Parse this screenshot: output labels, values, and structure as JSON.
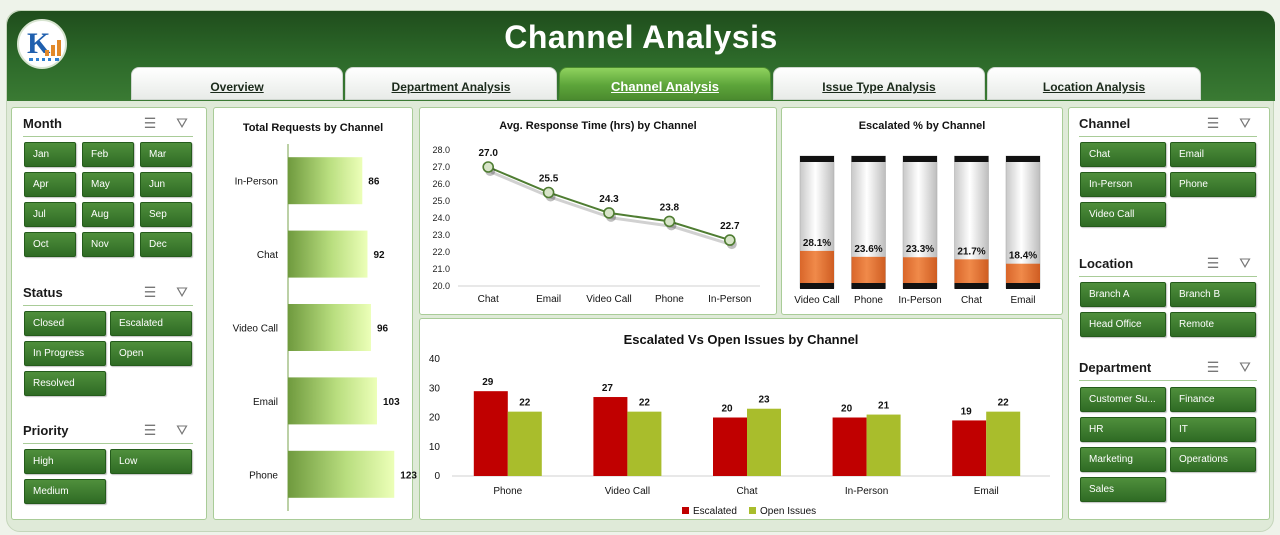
{
  "header": {
    "title": "Channel Analysis"
  },
  "tabs": [
    {
      "label": "Overview",
      "active": false
    },
    {
      "label": "Department Analysis",
      "active": false
    },
    {
      "label": "Channel Analysis",
      "active": true
    },
    {
      "label": "Issue Type Analysis",
      "active": false
    },
    {
      "label": "Location Analysis",
      "active": false
    }
  ],
  "slicers": {
    "month": {
      "title": "Month",
      "items": [
        "Jan",
        "Feb",
        "Mar",
        "Apr",
        "May",
        "Jun",
        "Jul",
        "Aug",
        "Sep",
        "Oct",
        "Nov",
        "Dec"
      ]
    },
    "status": {
      "title": "Status",
      "items": [
        "Closed",
        "Escalated",
        "In Progress",
        "Open",
        "Resolved"
      ]
    },
    "priority": {
      "title": "Priority",
      "items": [
        "High",
        "Low",
        "Medium"
      ]
    },
    "channel": {
      "title": "Channel",
      "items": [
        "Chat",
        "Email",
        "In-Person",
        "Phone",
        "Video Call"
      ]
    },
    "location": {
      "title": "Location",
      "items": [
        "Branch A",
        "Branch B",
        "Head Office",
        "Remote"
      ]
    },
    "department": {
      "title": "Department",
      "items": [
        "Customer Su...",
        "Finance",
        "HR",
        "IT",
        "Marketing",
        "Operations",
        "Sales"
      ]
    }
  },
  "icons": {
    "multi_select": "multi-select-icon",
    "clear_filter": "clear-filter-icon"
  },
  "colors": {
    "brand_dark": "#2d6a2a",
    "chip": "#3d7d30",
    "escalated": "#c00000",
    "open": "#a9bd2c",
    "escalated_fill": "#ed7d31"
  },
  "chart_data": [
    {
      "id": "total_requests",
      "type": "bar",
      "orientation": "horizontal",
      "title": "Total Requests by Channel",
      "categories": [
        "In-Person",
        "Chat",
        "Video Call",
        "Email",
        "Phone"
      ],
      "values": [
        86,
        92,
        96,
        103,
        123
      ]
    },
    {
      "id": "avg_response",
      "type": "line",
      "title": "Avg. Response Time (hrs) by Channel",
      "categories": [
        "Chat",
        "Email",
        "Video Call",
        "Phone",
        "In-Person"
      ],
      "values": [
        27.0,
        25.5,
        24.3,
        23.8,
        22.7
      ],
      "value_labels": [
        "27.0",
        "25.5",
        "24.3",
        "23.8",
        "22.7"
      ],
      "ylim": [
        20.0,
        28.0
      ],
      "yticks": [
        "20.0",
        "21.0",
        "22.0",
        "23.0",
        "24.0",
        "25.0",
        "26.0",
        "27.0",
        "28.0"
      ]
    },
    {
      "id": "escalated_pct",
      "type": "bar",
      "title": "Escalated % by Channel",
      "categories": [
        "Video Call",
        "Phone",
        "In-Person",
        "Chat",
        "Email"
      ],
      "values": [
        28.1,
        23.6,
        23.3,
        21.7,
        18.4
      ],
      "value_labels": [
        "28.1%",
        "23.6%",
        "23.3%",
        "21.7%",
        "18.4%"
      ],
      "ylim": [
        0,
        100
      ]
    },
    {
      "id": "escalated_vs_open",
      "type": "bar",
      "title": "Escalated Vs Open Issues by Channel",
      "categories": [
        "Phone",
        "Video Call",
        "Chat",
        "In-Person",
        "Email"
      ],
      "series": [
        {
          "name": "Escalated",
          "values": [
            29,
            27,
            20,
            20,
            19
          ]
        },
        {
          "name": "Open Issues",
          "values": [
            22,
            22,
            23,
            21,
            22
          ]
        }
      ],
      "ylim": [
        0,
        40
      ],
      "yticks": [
        "0",
        "10",
        "20",
        "30",
        "40"
      ],
      "legend": "bottom"
    }
  ]
}
